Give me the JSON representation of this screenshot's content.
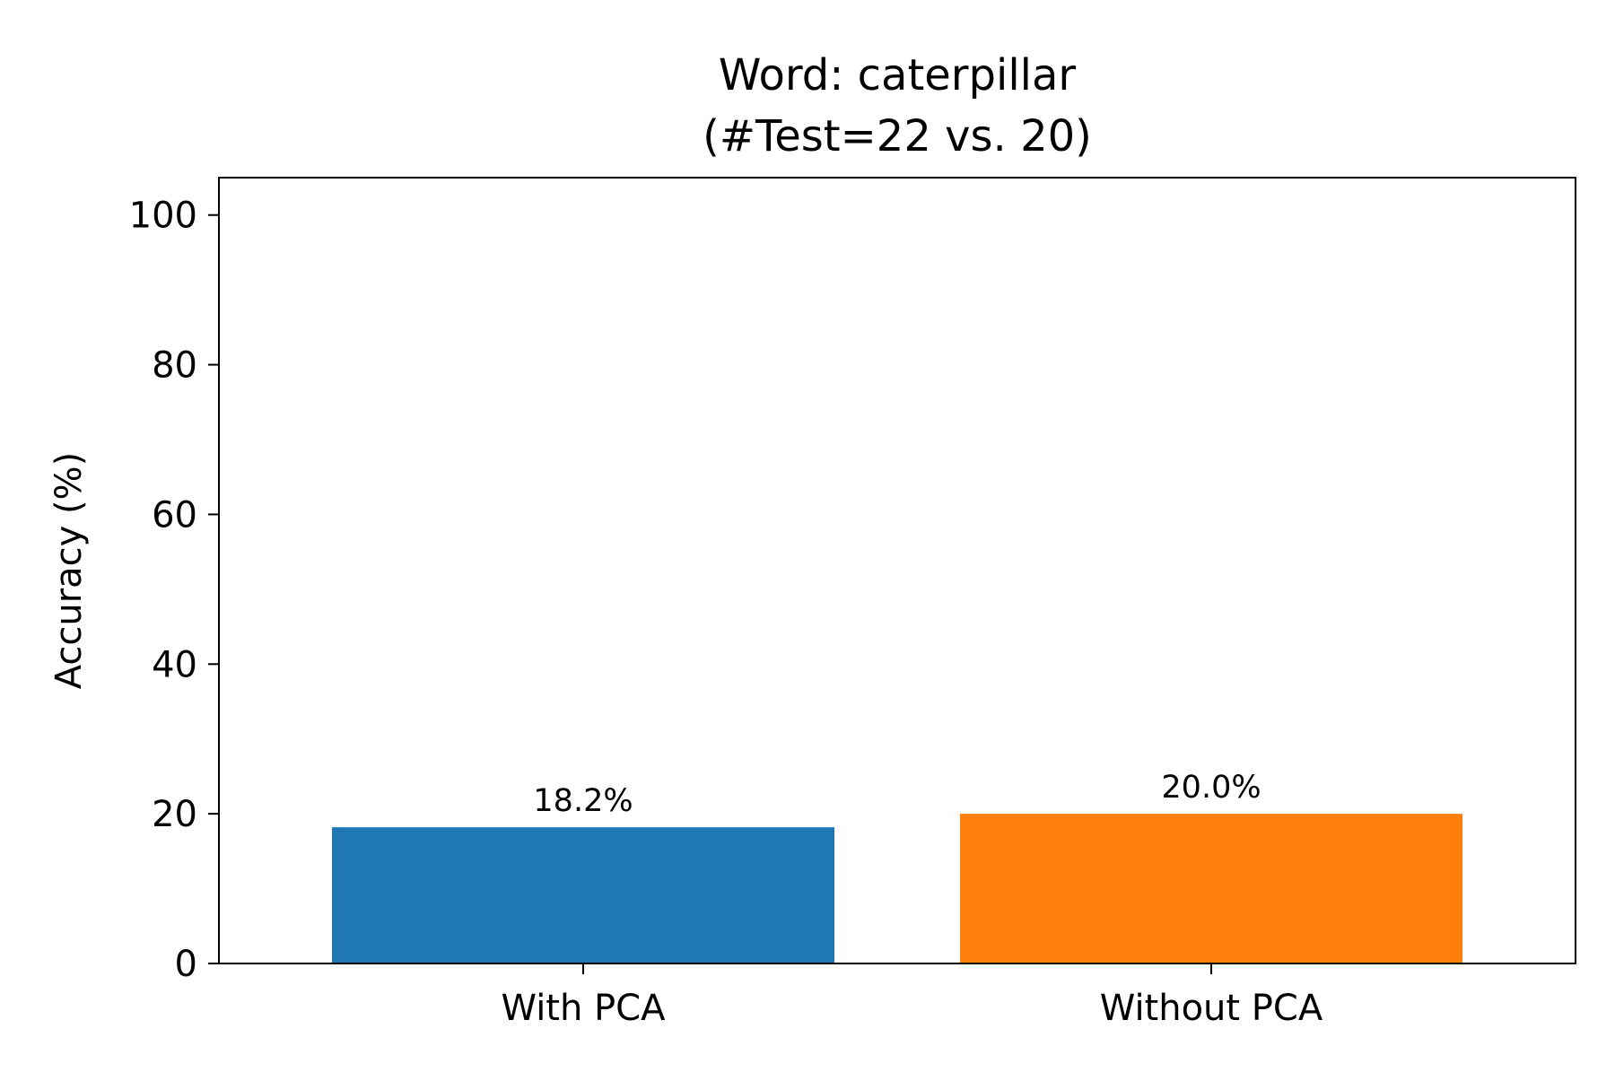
{
  "chart_data": {
    "type": "bar",
    "title_lines": [
      "Word: caterpillar",
      "(#Test=22 vs. 20)"
    ],
    "xlabel": "",
    "ylabel": "Accuracy (%)",
    "categories": [
      "With PCA",
      "Without PCA"
    ],
    "values": [
      18.2,
      20.0
    ],
    "data_labels": [
      "18.2%",
      "20.0%"
    ],
    "bar_colors": [
      "#1f77b4",
      "#ff7f0e"
    ],
    "ylim": [
      0,
      105
    ],
    "yticks": [
      0,
      20,
      40,
      60,
      80,
      100
    ],
    "ytick_labels": [
      "0",
      "20",
      "40",
      "60",
      "80",
      "100"
    ],
    "grid": false,
    "legend": "none"
  }
}
